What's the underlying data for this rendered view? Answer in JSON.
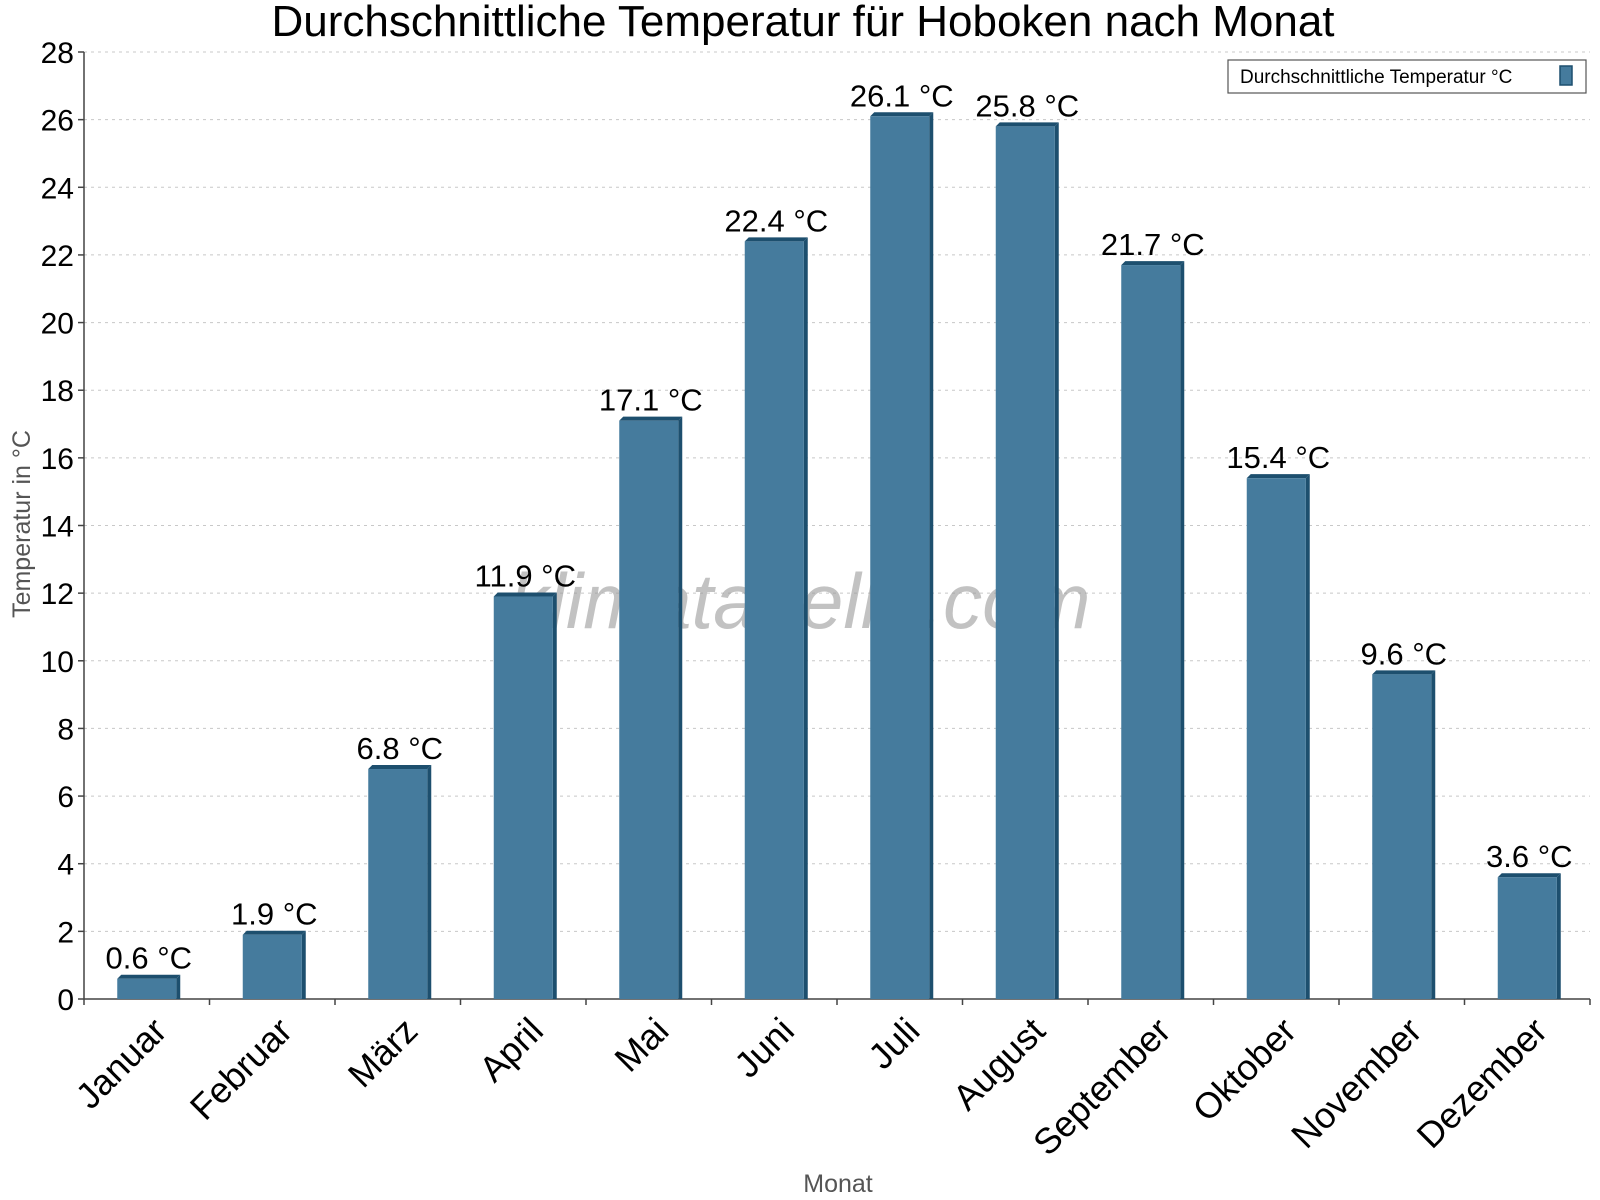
{
  "chart_data": {
    "type": "bar",
    "title": "Durchschnittliche Temperatur für Hoboken nach Monat",
    "xlabel": "Monat",
    "ylabel": "Temperatur in °C",
    "ylim": [
      0,
      28
    ],
    "yticks": [
      0,
      2,
      4,
      6,
      8,
      10,
      12,
      14,
      16,
      18,
      20,
      22,
      24,
      26,
      28
    ],
    "grid": true,
    "legend_position": "top-right",
    "categories": [
      "Januar",
      "Februar",
      "März",
      "April",
      "Mai",
      "Juni",
      "Juli",
      "August",
      "September",
      "Oktober",
      "November",
      "Dezember"
    ],
    "series": [
      {
        "name": "Durchschnittliche Temperatur °C",
        "values": [
          0.6,
          1.9,
          6.8,
          11.9,
          17.1,
          22.4,
          26.1,
          25.8,
          21.7,
          15.4,
          9.6,
          3.6
        ],
        "labels": [
          "0.6 °C",
          "1.9 °C",
          "6.8 °C",
          "11.9 °C",
          "17.1 °C",
          "22.4 °C",
          "26.1 °C",
          "25.8 °C",
          "21.7 °C",
          "15.4 °C",
          "9.6 °C",
          "3.6 °C"
        ],
        "color": "#457b9d",
        "edge_color": "#1d4f6e"
      }
    ]
  },
  "watermark": "klimatabelle.com"
}
